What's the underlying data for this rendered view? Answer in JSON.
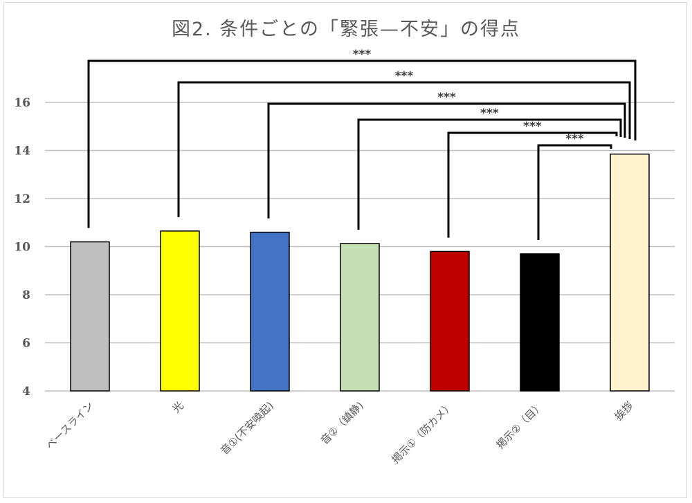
{
  "chart_data": {
    "type": "bar",
    "title": "図2.  条件ごとの「緊張—不安」の得点",
    "xlabel": "",
    "ylabel": "",
    "ylim": [
      4,
      16
    ],
    "yticks": [
      4,
      6,
      8,
      10,
      12,
      14,
      16
    ],
    "grid": true,
    "legend": null,
    "categories": [
      "ベースライン",
      "光",
      "音①(不安喚起)",
      "音②（鎮静)",
      "掲示①（防カメ）",
      "掲示②（目）",
      "挨拶"
    ],
    "values": [
      10.2,
      10.65,
      10.6,
      10.13,
      9.8,
      9.7,
      13.85
    ],
    "colors": [
      "#bfbfbf",
      "#ffff00",
      "#4472c4",
      "#c5e0b4",
      "#c00000",
      "#000000",
      "#fff2cc"
    ],
    "annotations": [
      {
        "from": "ベースライン",
        "to": "挨拶",
        "label": "***"
      },
      {
        "from": "光",
        "to": "挨拶",
        "label": "***"
      },
      {
        "from": "音①(不安喚起)",
        "to": "挨拶",
        "label": "***"
      },
      {
        "from": "音②（鎮静)",
        "to": "挨拶",
        "label": "***"
      },
      {
        "from": "掲示①（防カメ）",
        "to": "挨拶",
        "label": "***"
      },
      {
        "from": "掲示②（目）",
        "to": "挨拶",
        "label": "***"
      }
    ]
  }
}
